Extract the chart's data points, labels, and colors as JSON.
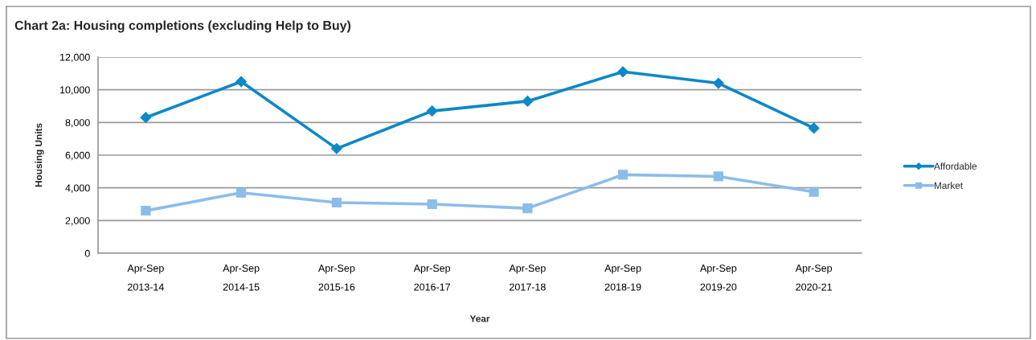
{
  "chart_data": {
    "type": "line",
    "title": "Chart 2a: Housing completions (excluding Help to Buy)",
    "xlabel": "Year",
    "ylabel": "Housing Units",
    "categories": [
      "Apr-Sep\n2013-14",
      "Apr-Sep\n2014-15",
      "Apr-Sep\n2015-16",
      "Apr-Sep\n2016-17",
      "Apr-Sep\n2017-18",
      "Apr-Sep\n2018-19",
      "Apr-Sep\n2019-20",
      "Apr-Sep\n2020-21"
    ],
    "series": [
      {
        "name": "Affordable",
        "color": "#0b88c8",
        "marker": "diamond",
        "values": [
          8300,
          10500,
          6400,
          8700,
          9300,
          11100,
          10400,
          7650
        ]
      },
      {
        "name": "Market",
        "color": "#8bbde9",
        "marker": "square",
        "values": [
          2600,
          3700,
          3100,
          3000,
          2750,
          4800,
          4700,
          3750
        ]
      }
    ],
    "ylim": [
      0,
      12000
    ],
    "yticks": [
      0,
      {
        "value": 2000,
        "label": "2,000"
      },
      {
        "value": 4000,
        "label": "4,000"
      },
      {
        "value": 6000,
        "label": "6,000"
      },
      {
        "value": 8000,
        "label": "8,000"
      },
      {
        "value": 10000,
        "label": "10,000"
      },
      {
        "value": 12000,
        "label": "12,000"
      }
    ],
    "grid": "y",
    "legend": "right",
    "line_style": "solid"
  }
}
